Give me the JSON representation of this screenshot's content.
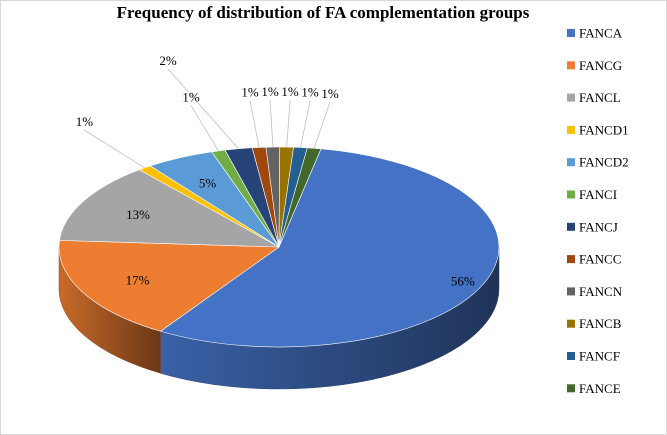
{
  "chart_data": {
    "type": "pie",
    "title": "Frequency of distribution of FA complementation groups",
    "legend_position": "right",
    "three_d": true,
    "slices": [
      {
        "name": "FANCA",
        "value": 56,
        "label": "56%",
        "color": "#4472C4"
      },
      {
        "name": "FANCG",
        "value": 17,
        "label": "17%",
        "color": "#ED7D31"
      },
      {
        "name": "FANCL",
        "value": 13,
        "label": "13%",
        "color": "#A5A5A5"
      },
      {
        "name": "FANCD1",
        "value": 1,
        "label": "1%",
        "color": "#FFC000"
      },
      {
        "name": "FANCD2",
        "value": 5,
        "label": "5%",
        "color": "#5B9BD5"
      },
      {
        "name": "FANCI",
        "value": 1,
        "label": "1%",
        "color": "#70AD47"
      },
      {
        "name": "FANCJ",
        "value": 2,
        "label": "2%",
        "color": "#264478"
      },
      {
        "name": "FANCC",
        "value": 1,
        "label": "1%",
        "color": "#9E480E"
      },
      {
        "name": "FANCN",
        "value": 1,
        "label": "1%",
        "color": "#636363"
      },
      {
        "name": "FANCB",
        "value": 1,
        "label": "1%",
        "color": "#997300"
      },
      {
        "name": "FANCF",
        "value": 1,
        "label": "1%",
        "color": "#255E91"
      },
      {
        "name": "FANCE",
        "value": 1,
        "label": "1%",
        "color": "#43682B"
      }
    ]
  }
}
